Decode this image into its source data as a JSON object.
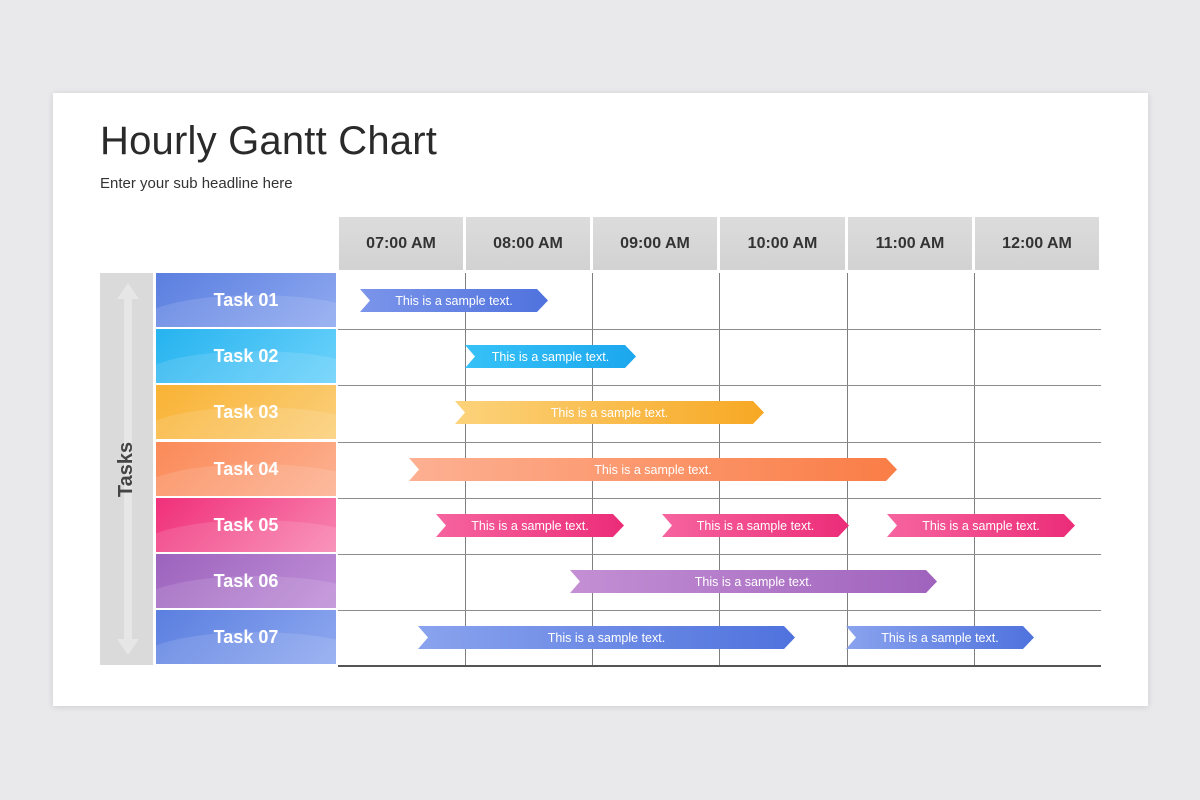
{
  "slide": {
    "title": "Hourly Gantt Chart",
    "subtitle": "Enter your sub headline here"
  },
  "axis_label": "Tasks",
  "hours": [
    "07:00 AM",
    "08:00 AM",
    "09:00 AM",
    "10:00 AM",
    "11:00 AM",
    "12:00 AM"
  ],
  "tasks": [
    {
      "label": "Task 01",
      "color_from": "#5b7fe0",
      "color_to": "#8fa9f0",
      "bars": [
        {
          "text": "This is a sample text.",
          "start": 0.17,
          "end": 1.65,
          "color_from": "#7b95ea",
          "color_to": "#4f72dd"
        }
      ]
    },
    {
      "label": "Task 02",
      "color_from": "#26b3ef",
      "color_to": "#6cd2fb",
      "bars": [
        {
          "text": "This is a sample text.",
          "start": 1.0,
          "end": 2.35,
          "color_from": "#36c2f7",
          "color_to": "#1ca7ee"
        }
      ]
    },
    {
      "label": "Task 03",
      "color_from": "#f9b234",
      "color_to": "#fbcf7a",
      "bars": [
        {
          "text": "This is a sample text.",
          "start": 0.92,
          "end": 3.35,
          "color_from": "#fcd37b",
          "color_to": "#f7a823"
        }
      ]
    },
    {
      "label": "Task 04",
      "color_from": "#fb8a58",
      "color_to": "#fcb191",
      "bars": [
        {
          "text": "This is a sample text.",
          "start": 0.56,
          "end": 4.4,
          "color_from": "#fdb092",
          "color_to": "#fa7d46"
        }
      ]
    },
    {
      "label": "Task 05",
      "color_from": "#f0307a",
      "color_to": "#f885b1",
      "bars": [
        {
          "text": "This is a sample text.",
          "start": 0.77,
          "end": 2.25,
          "color_from": "#f6649f",
          "color_to": "#ec2c78"
        },
        {
          "text": "This is a sample text.",
          "start": 2.55,
          "end": 4.02,
          "color_from": "#f6649f",
          "color_to": "#ec2c78"
        },
        {
          "text": "This is a sample text.",
          "start": 4.32,
          "end": 5.8,
          "color_from": "#f6649f",
          "color_to": "#ec2c78"
        }
      ]
    },
    {
      "label": "Task 06",
      "color_from": "#9c63bd",
      "color_to": "#c08fd8",
      "bars": [
        {
          "text": "This is a sample text.",
          "start": 1.83,
          "end": 4.72,
          "color_from": "#c48fd4",
          "color_to": "#9f63bd"
        }
      ]
    },
    {
      "label": "Task 07",
      "color_from": "#5b7fe0",
      "color_to": "#8fa9f0",
      "bars": [
        {
          "text": "This is a sample text.",
          "start": 0.63,
          "end": 3.6,
          "color_from": "#8aa3ee",
          "color_to": "#4f72dd"
        },
        {
          "text": "This is a sample text.",
          "start": 4.0,
          "end": 5.48,
          "color_from": "#8aa3ee",
          "color_to": "#4f72dd"
        }
      ]
    }
  ]
}
